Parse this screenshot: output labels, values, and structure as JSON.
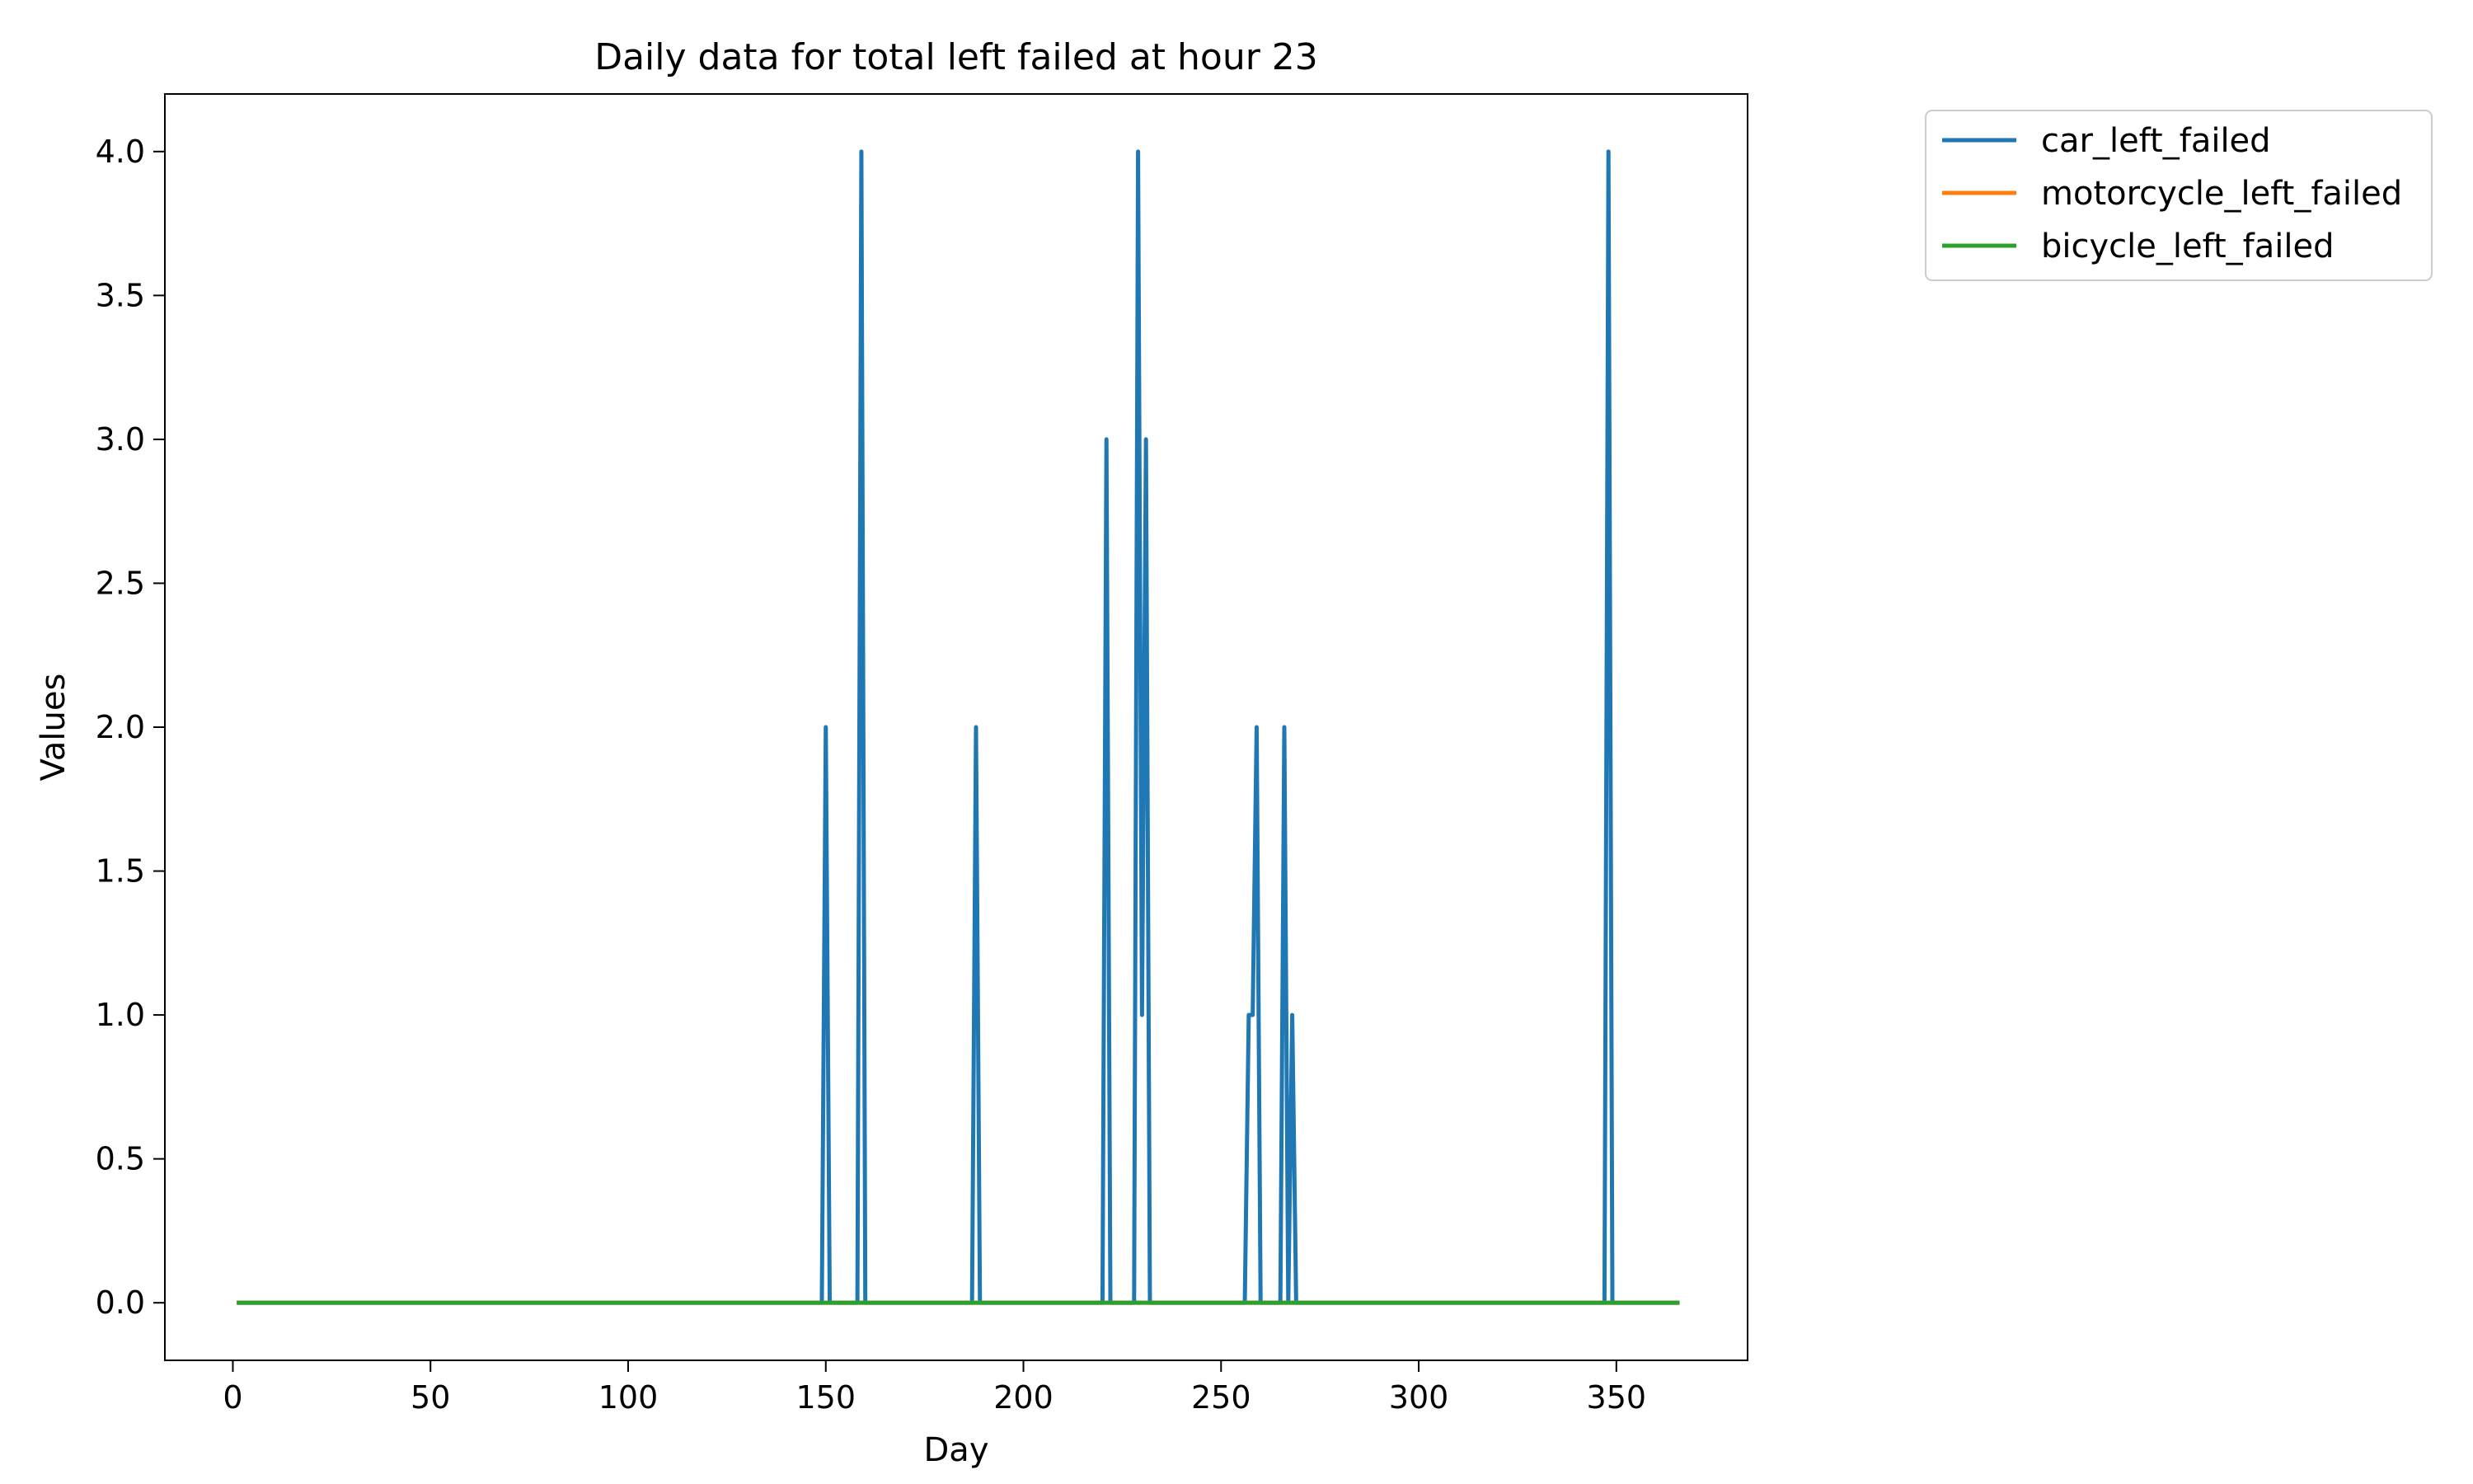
{
  "chart_data": {
    "type": "line",
    "title": "Daily data for total left failed at hour 23",
    "xlabel": "Day",
    "ylabel": "Values",
    "xlim": [
      -17.2,
      383.2
    ],
    "ylim": [
      -0.2,
      4.2
    ],
    "xticks": [
      0,
      50,
      100,
      150,
      200,
      250,
      300,
      350
    ],
    "yticks": [
      0.0,
      0.5,
      1.0,
      1.5,
      2.0,
      2.5,
      3.0,
      3.5,
      4.0
    ],
    "ytick_labels": [
      "0.0",
      "0.5",
      "1.0",
      "1.5",
      "2.0",
      "2.5",
      "3.0",
      "3.5",
      "4.0"
    ],
    "x_range": [
      1,
      366
    ],
    "grid": false,
    "legend_position": "outside top-right",
    "series": [
      {
        "name": "car_left_failed",
        "color": "#1f77b4",
        "nonzero_points": [
          [
            150,
            2
          ],
          [
            159,
            4
          ],
          [
            188,
            2
          ],
          [
            221,
            3
          ],
          [
            229,
            4
          ],
          [
            230,
            1
          ],
          [
            231,
            3
          ],
          [
            257,
            1
          ],
          [
            258,
            1
          ],
          [
            259,
            2
          ],
          [
            266,
            2
          ],
          [
            268,
            1
          ],
          [
            348,
            4
          ]
        ]
      },
      {
        "name": "motorcycle_left_failed",
        "color": "#ff7f0e",
        "nonzero_points": []
      },
      {
        "name": "bicycle_left_failed",
        "color": "#2ca02c",
        "nonzero_points": []
      }
    ]
  }
}
